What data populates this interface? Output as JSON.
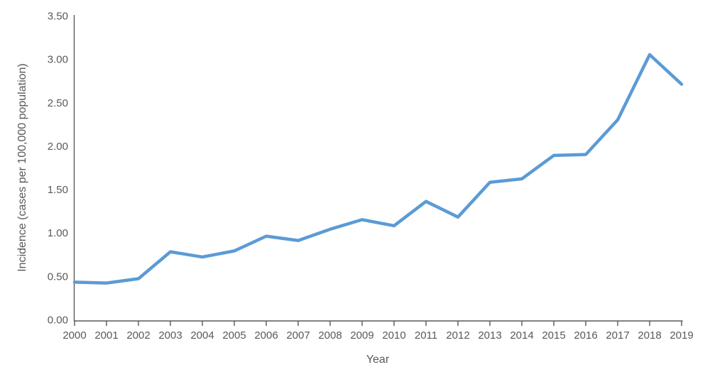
{
  "chart_data": {
    "type": "line",
    "title": "",
    "xlabel": "Year",
    "ylabel": "Incidence (cases per 100,000 population)",
    "x": [
      2000,
      2001,
      2002,
      2003,
      2004,
      2005,
      2006,
      2007,
      2008,
      2009,
      2010,
      2011,
      2012,
      2013,
      2014,
      2015,
      2016,
      2017,
      2018,
      2019
    ],
    "series": [
      {
        "name": "Incidence",
        "color": "#5B9BD5",
        "values": [
          0.43,
          0.42,
          0.47,
          0.78,
          0.72,
          0.79,
          0.96,
          0.91,
          1.04,
          1.15,
          1.08,
          1.36,
          1.18,
          1.58,
          1.62,
          1.89,
          1.9,
          2.3,
          3.05,
          2.71
        ]
      }
    ],
    "ylim": [
      0,
      3.5
    ],
    "yticks": [
      0,
      0.5,
      1,
      1.5,
      2,
      2.5,
      3,
      3.5
    ],
    "ytick_labels": [
      "0.00",
      "0.50",
      "1.00",
      "1.50",
      "2.00",
      "2.50",
      "3.00",
      "3.50"
    ],
    "xtick_labels": [
      "2000",
      "2001",
      "2002",
      "2003",
      "2004",
      "2005",
      "2006",
      "2007",
      "2008",
      "2009",
      "2010",
      "2011",
      "2012",
      "2013",
      "2014",
      "2015",
      "2016",
      "2017",
      "2018",
      "2019"
    ],
    "grid": false,
    "legend": false,
    "colors": {
      "line": "#5B9BD5",
      "axis": "#595959",
      "text": "#595959",
      "background": "#FFFFFF"
    }
  }
}
